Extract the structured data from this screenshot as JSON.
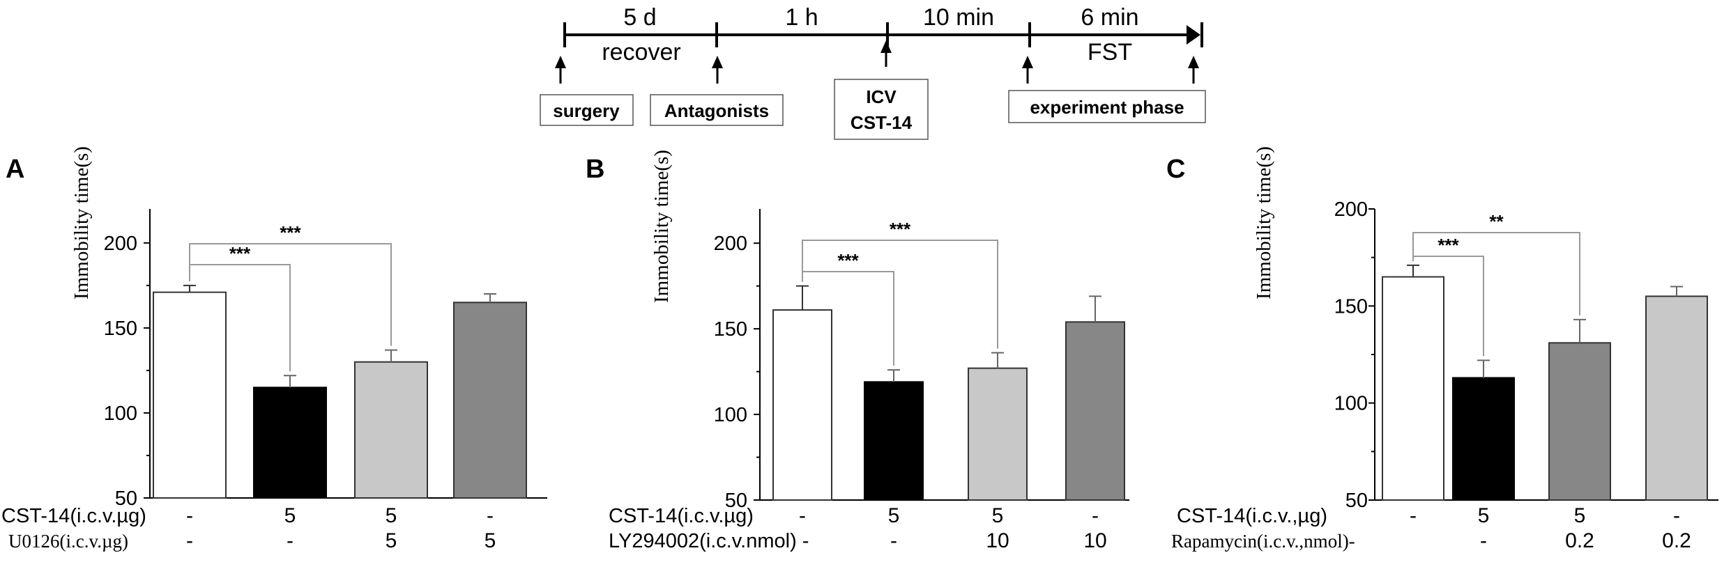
{
  "timeline": {
    "segments": [
      {
        "duration": "5 d",
        "caption": "recover"
      },
      {
        "duration": "1 h",
        "caption": ""
      },
      {
        "duration": "10 min",
        "caption": ""
      },
      {
        "duration": "6 min",
        "caption": "FST"
      }
    ],
    "steps": [
      "surgery",
      "Antagonists",
      "ICV",
      "CST-14",
      "experiment phase"
    ]
  },
  "chart_data": [
    {
      "type": "bar",
      "panel": "A",
      "ylabel": "Immobility time(s)",
      "ylim": [
        50,
        220
      ],
      "yticks": [
        50,
        100,
        150,
        200
      ],
      "ytick_labels": [
        "50",
        "100",
        "150",
        "200"
      ],
      "values": [
        171,
        115,
        130,
        165
      ],
      "errors": [
        4,
        7,
        7,
        5
      ],
      "colors": [
        "#ffffff",
        "#000000",
        "#c8c8c8",
        "#878787"
      ],
      "significance": [
        {
          "from": 0,
          "to": 1,
          "label": "***"
        },
        {
          "from": 0,
          "to": 2,
          "label": "***"
        }
      ],
      "treatments": [
        {
          "label": "CST-14(i.c.v.µg)",
          "values": [
            "-",
            "5",
            "5",
            "-"
          ]
        },
        {
          "label": "U0126(i.c.v.µg)",
          "values": [
            "-",
            "-",
            "5",
            "5"
          ]
        }
      ]
    },
    {
      "type": "bar",
      "panel": "B",
      "ylabel": "Immobility time(s)",
      "ylim": [
        50,
        220
      ],
      "yticks": [
        50,
        100,
        150,
        200
      ],
      "ytick_labels": [
        "50",
        "100",
        "150",
        "200"
      ],
      "values": [
        161,
        119,
        127,
        154
      ],
      "errors": [
        14,
        7,
        9,
        15
      ],
      "colors": [
        "#ffffff",
        "#000000",
        "#c8c8c8",
        "#878787"
      ],
      "significance": [
        {
          "from": 0,
          "to": 1,
          "label": "***"
        },
        {
          "from": 0,
          "to": 2,
          "label": "***"
        }
      ],
      "treatments": [
        {
          "label": "CST-14(i.c.v.µg)",
          "values": [
            "-",
            "5",
            "5",
            "-"
          ]
        },
        {
          "label": "LY294002(i.c.v.nmol) -",
          "values": [
            "",
            "-",
            "10",
            "10"
          ]
        }
      ]
    },
    {
      "type": "bar",
      "panel": "C",
      "ylabel": "Immobility time(s)",
      "ylim": [
        50,
        200
      ],
      "yticks": [
        50,
        100,
        150,
        200
      ],
      "ytick_labels": [
        "50",
        "100",
        "150",
        "200"
      ],
      "values": [
        165,
        113,
        131,
        155
      ],
      "errors": [
        6,
        9,
        12,
        5
      ],
      "colors": [
        "#ffffff",
        "#000000",
        "#878787",
        "#c8c8c8"
      ],
      "significance": [
        {
          "from": 0,
          "to": 1,
          "label": "***"
        },
        {
          "from": 0,
          "to": 2,
          "label": "**"
        }
      ],
      "treatments": [
        {
          "label": "CST-14(i.c.v.,µg)",
          "values": [
            "-",
            "5",
            "5",
            "-"
          ]
        },
        {
          "label": "Rapamycin(i.c.v.,nmol)-",
          "values": [
            "",
            "-",
            "0.2",
            "0.2"
          ]
        }
      ]
    }
  ]
}
